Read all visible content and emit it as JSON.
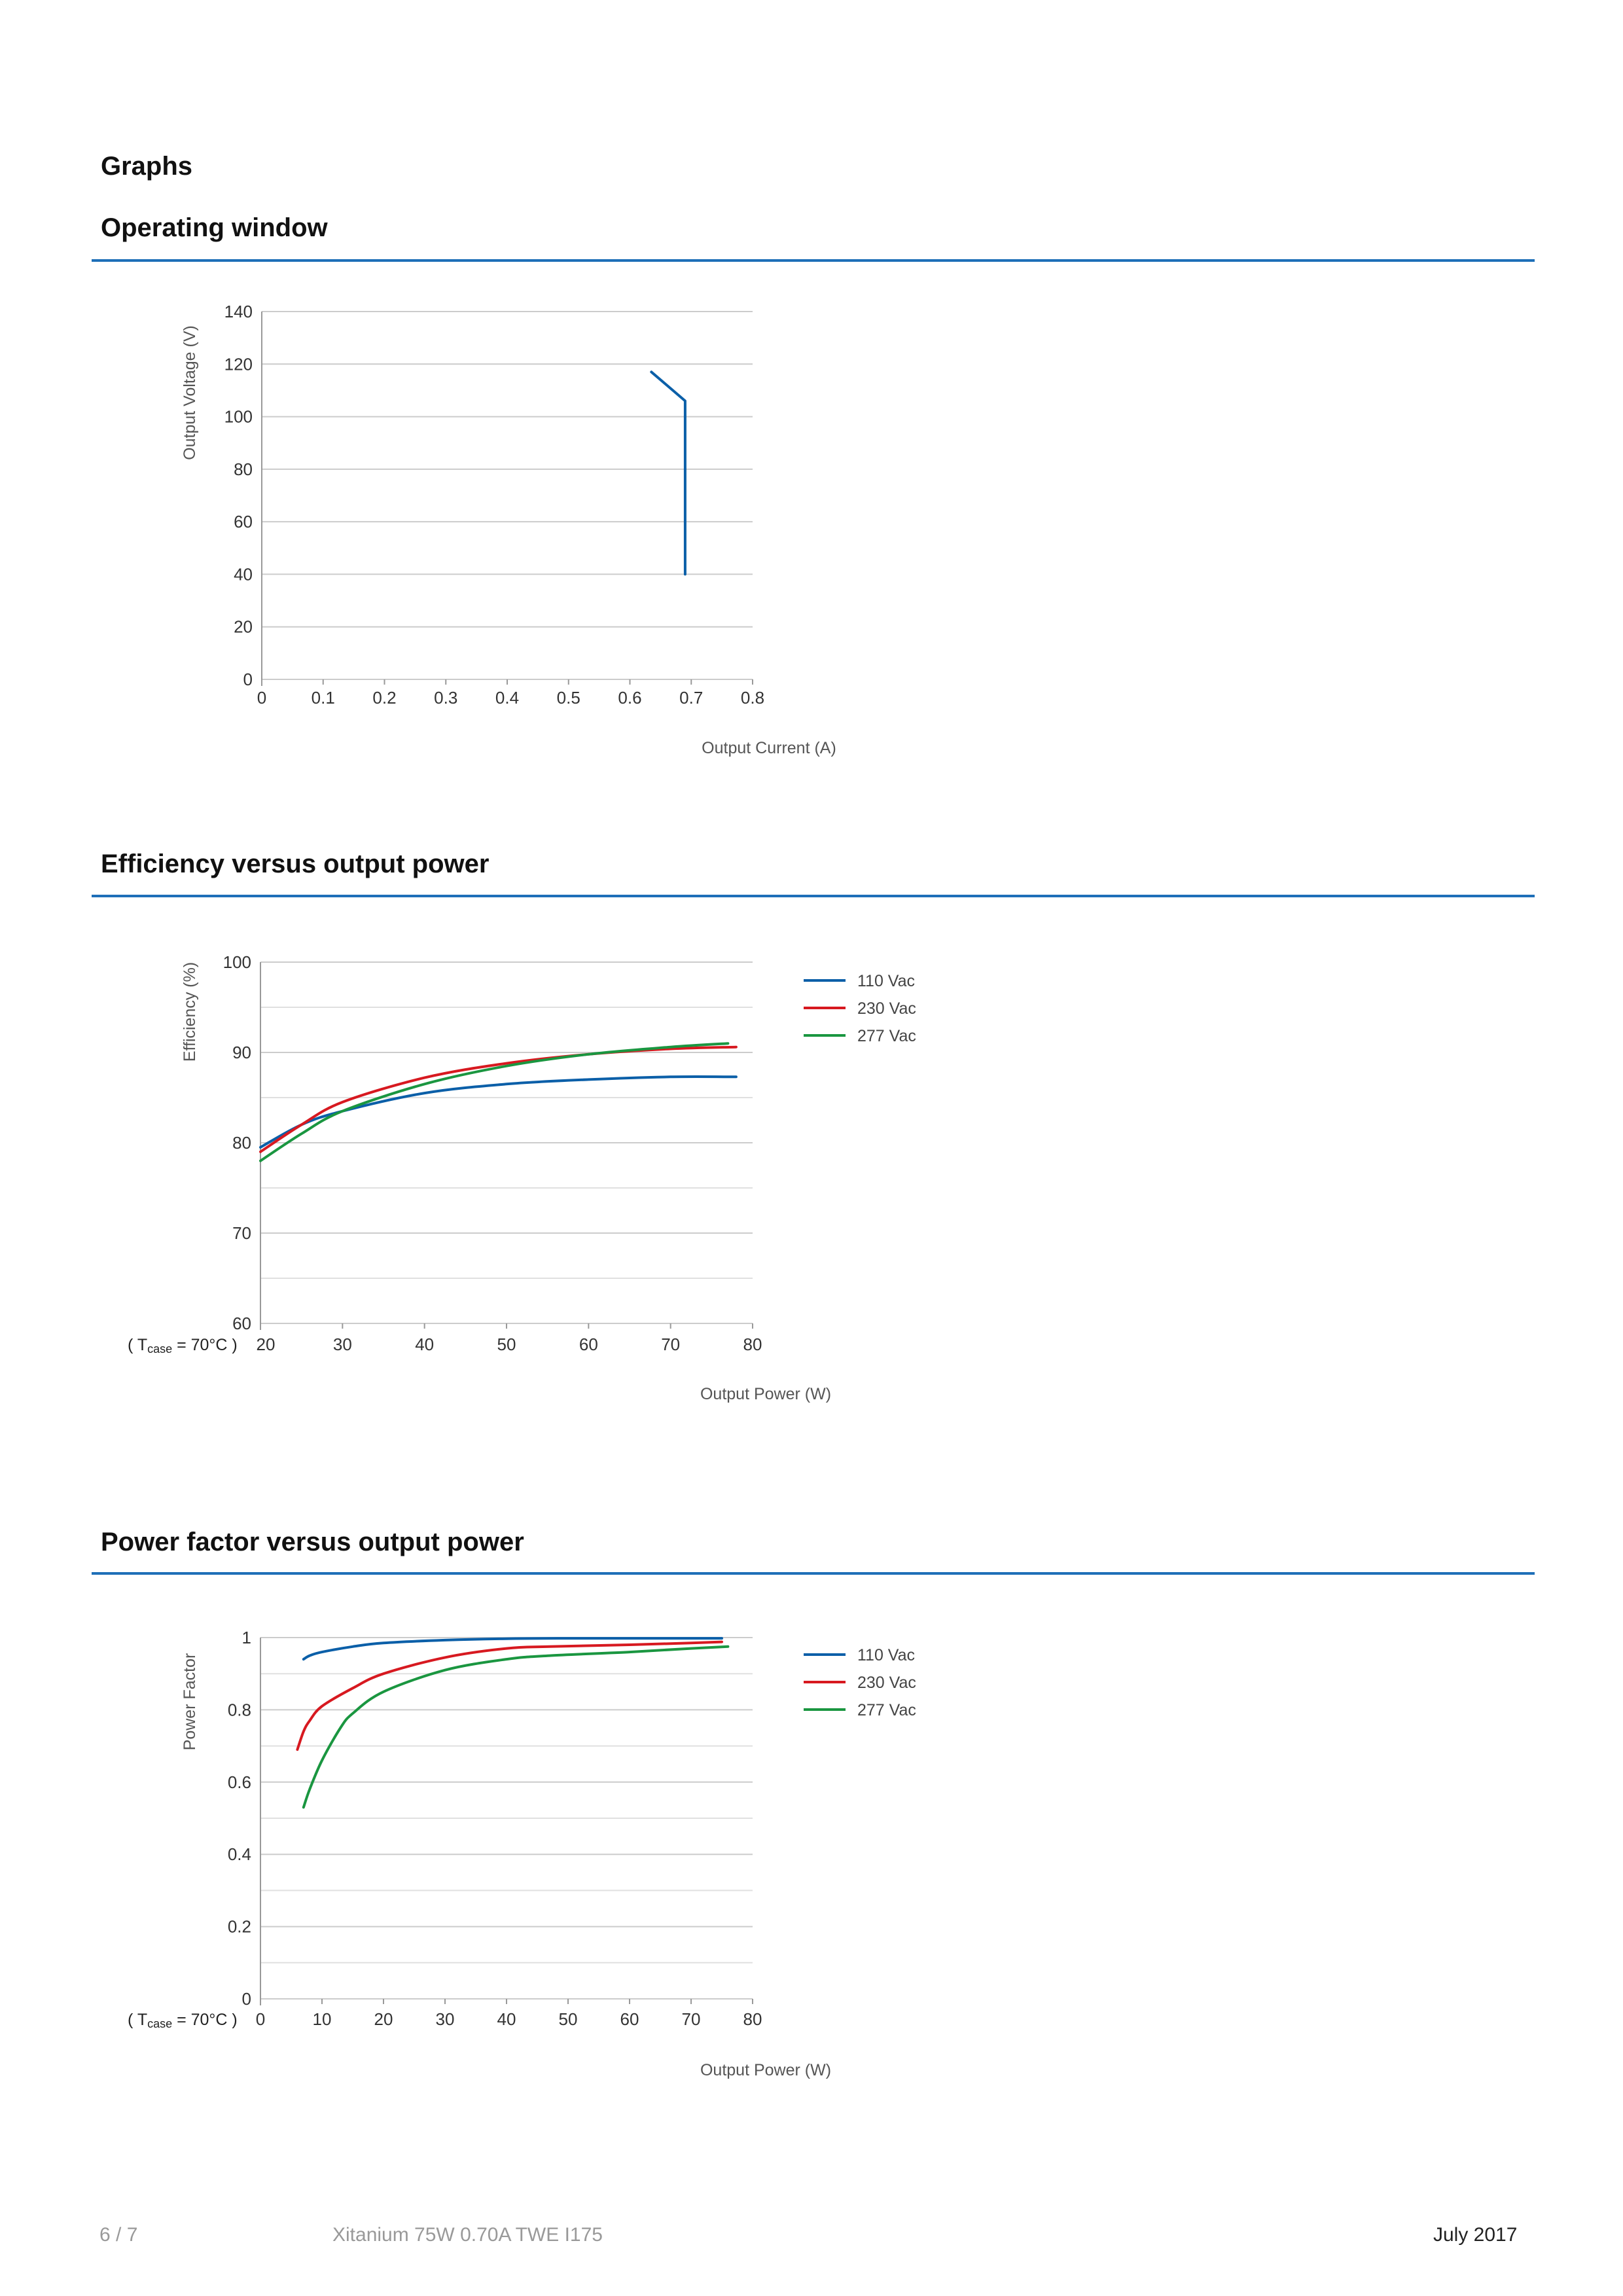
{
  "page": {
    "section_title": "Graphs",
    "footer": {
      "page": "6 / 7",
      "product": "Xitanium 75W 0.70A TWE I175",
      "date": "July 2017"
    },
    "colors": {
      "rule": "#1e6fb8",
      "grid": "#cccccc",
      "axis": "#999999"
    }
  },
  "charts": [
    {
      "heading": "Operating window"
    },
    {
      "heading": "Efficiency versus output power",
      "note_prefix": "( T",
      "note_sub": "case",
      "note_suffix": " = 70°C )"
    },
    {
      "heading": "Power factor versus output power",
      "note_prefix": "( T",
      "note_sub": "case",
      "note_suffix": " = 70°C )"
    }
  ],
  "chart_data": [
    {
      "type": "line",
      "title": "Operating window",
      "xlabel": "Output Current (A)",
      "ylabel": "Output Voltage (V)",
      "xlim": [
        0,
        0.8
      ],
      "ylim": [
        0,
        140
      ],
      "xticks": [
        "0",
        "0.1",
        "0.2",
        "0.3",
        "0.4",
        "0.5",
        "0.6",
        "0.7",
        "0.8"
      ],
      "yticks": [
        "0",
        "20",
        "40",
        "60",
        "80",
        "100",
        "120",
        "140"
      ],
      "grid": true,
      "series": [
        {
          "color": "#0b5fa8",
          "x": [
            0.635,
            0.69,
            0.69
          ],
          "y": [
            117,
            106,
            40
          ]
        }
      ]
    },
    {
      "type": "line",
      "title": "Efficiency versus output power",
      "xlabel": "Output Power (W)",
      "ylabel": "Efficiency (%)",
      "xlim": [
        20,
        80
      ],
      "ylim": [
        60,
        100
      ],
      "xticks": [
        "20",
        "30",
        "40",
        "50",
        "60",
        "70",
        "80"
      ],
      "yticks": [
        "60",
        "70",
        "80",
        "90",
        "100"
      ],
      "grid": true,
      "legend_position": "right",
      "series": [
        {
          "name": "110 Vac",
          "color": "#0b5fa8",
          "x": [
            20,
            25,
            30,
            40,
            50,
            60,
            70,
            78
          ],
          "y": [
            79.5,
            82.0,
            83.5,
            85.5,
            86.5,
            87.0,
            87.3,
            87.3
          ]
        },
        {
          "name": "230 Vac",
          "color": "#d71920",
          "x": [
            20,
            25,
            30,
            40,
            50,
            60,
            70,
            78
          ],
          "y": [
            79.0,
            82.0,
            84.5,
            87.2,
            88.8,
            89.8,
            90.4,
            90.6
          ]
        },
        {
          "name": "277 Vac",
          "color": "#1a9640",
          "x": [
            20,
            25,
            30,
            40,
            50,
            60,
            70,
            77
          ],
          "y": [
            78.0,
            81.0,
            83.5,
            86.5,
            88.5,
            89.8,
            90.6,
            91.0
          ]
        }
      ]
    },
    {
      "type": "line",
      "title": "Power factor versus output power",
      "xlabel": "Output Power (W)",
      "ylabel": "Power Factor",
      "xlim": [
        0,
        80
      ],
      "ylim": [
        0,
        1
      ],
      "xticks": [
        "0",
        "10",
        "20",
        "30",
        "40",
        "50",
        "60",
        "70",
        "80"
      ],
      "yticks": [
        "0",
        "0.2",
        "0.4",
        "0.6",
        "0.8",
        "1"
      ],
      "grid": true,
      "legend_position": "right",
      "series": [
        {
          "name": "110 Vac",
          "color": "#0b5fa8",
          "x": [
            7,
            8,
            10,
            15,
            20,
            30,
            40,
            50,
            60,
            70,
            75
          ],
          "y": [
            0.94,
            0.95,
            0.96,
            0.975,
            0.985,
            0.993,
            0.997,
            0.998,
            0.998,
            0.998,
            0.998
          ]
        },
        {
          "name": "230 Vac",
          "color": "#d71920",
          "x": [
            6,
            7,
            8,
            10,
            15,
            20,
            30,
            40,
            47,
            60,
            70,
            75
          ],
          "y": [
            0.69,
            0.74,
            0.77,
            0.81,
            0.86,
            0.9,
            0.945,
            0.97,
            0.975,
            0.98,
            0.985,
            0.988
          ]
        },
        {
          "name": "277 Vac",
          "color": "#1a9640",
          "x": [
            7,
            8,
            10,
            13,
            15,
            20,
            30,
            40,
            47,
            60,
            70,
            76
          ],
          "y": [
            0.53,
            0.58,
            0.66,
            0.75,
            0.79,
            0.85,
            0.91,
            0.94,
            0.95,
            0.96,
            0.97,
            0.975
          ]
        }
      ]
    }
  ]
}
